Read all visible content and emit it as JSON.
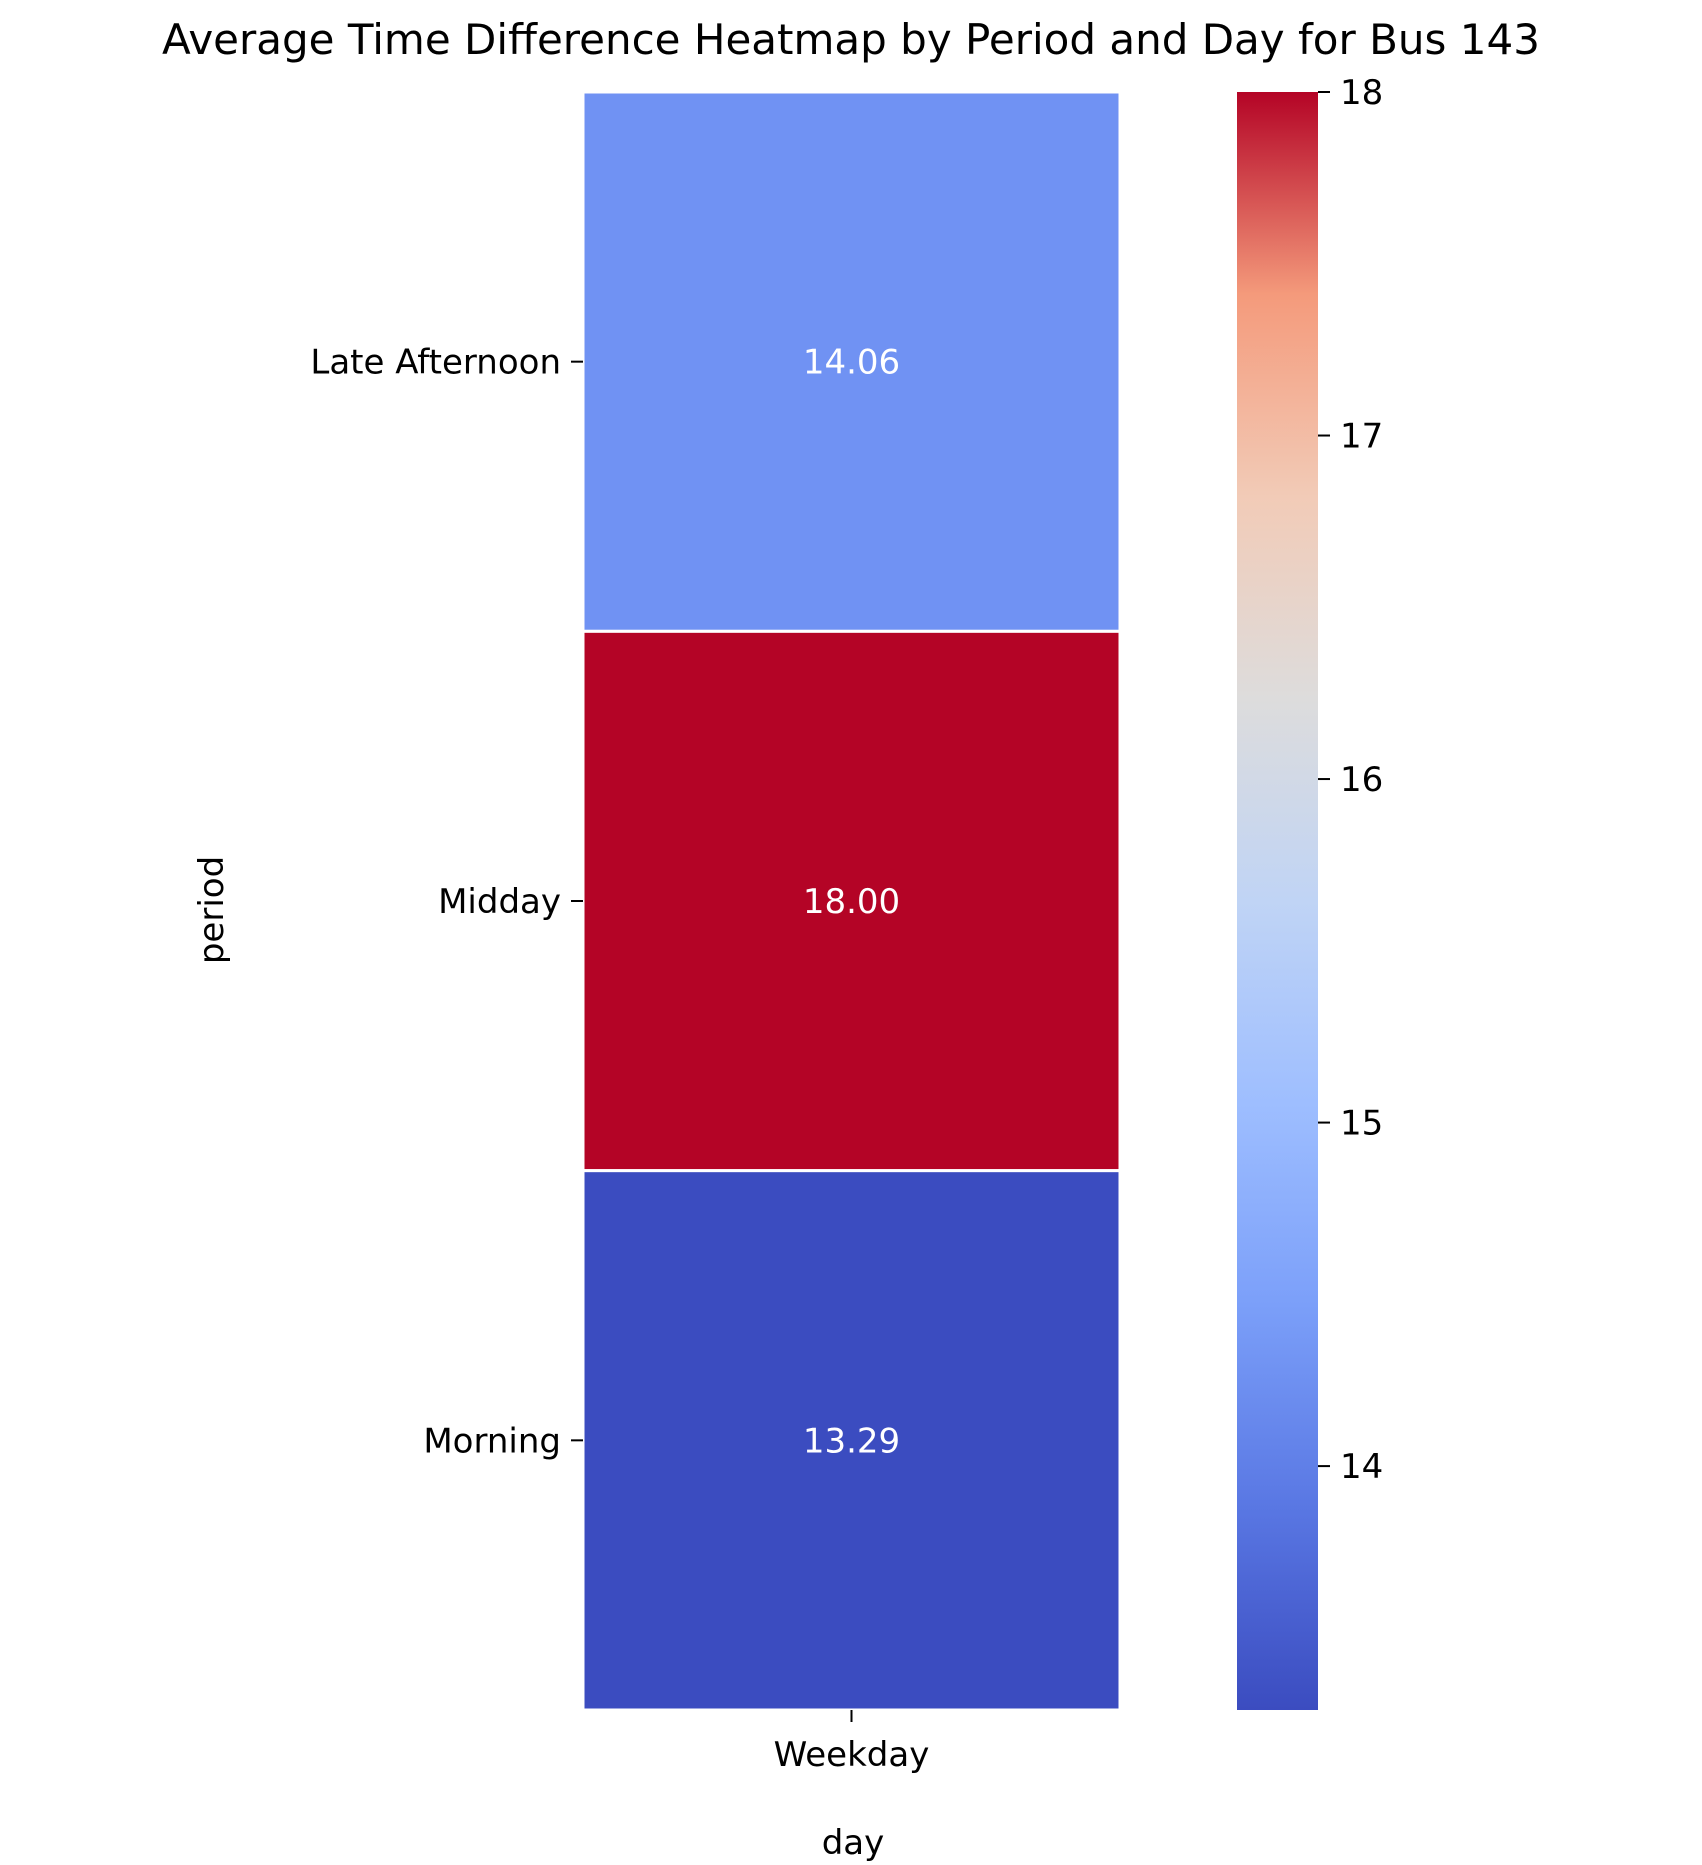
{
  "chart_data": {
    "type": "heatmap",
    "title": "Average Time Difference Heatmap by Period and Day for Bus 143",
    "xlabel": "day",
    "ylabel": "period",
    "x_categories": [
      "Weekday"
    ],
    "y_categories": [
      "Late Afternoon",
      "Midday",
      "Morning"
    ],
    "values": [
      [
        14.06
      ],
      [
        18.0
      ],
      [
        13.29
      ]
    ],
    "annotations": [
      [
        "14.06"
      ],
      [
        "18.00"
      ],
      [
        "13.29"
      ]
    ],
    "colormap": "coolwarm",
    "colorbar": {
      "vmin": 13.29,
      "vmax": 18.0,
      "ticks": [
        14,
        15,
        16,
        17,
        18
      ],
      "tick_labels": [
        "14",
        "15",
        "16",
        "17",
        "18"
      ]
    },
    "cell_colors": {
      "Late Afternoon": "#7092f3",
      "Midday": "#b40426",
      "Morning": "#3b4cc0"
    },
    "annotation_color": "#ffffff"
  }
}
